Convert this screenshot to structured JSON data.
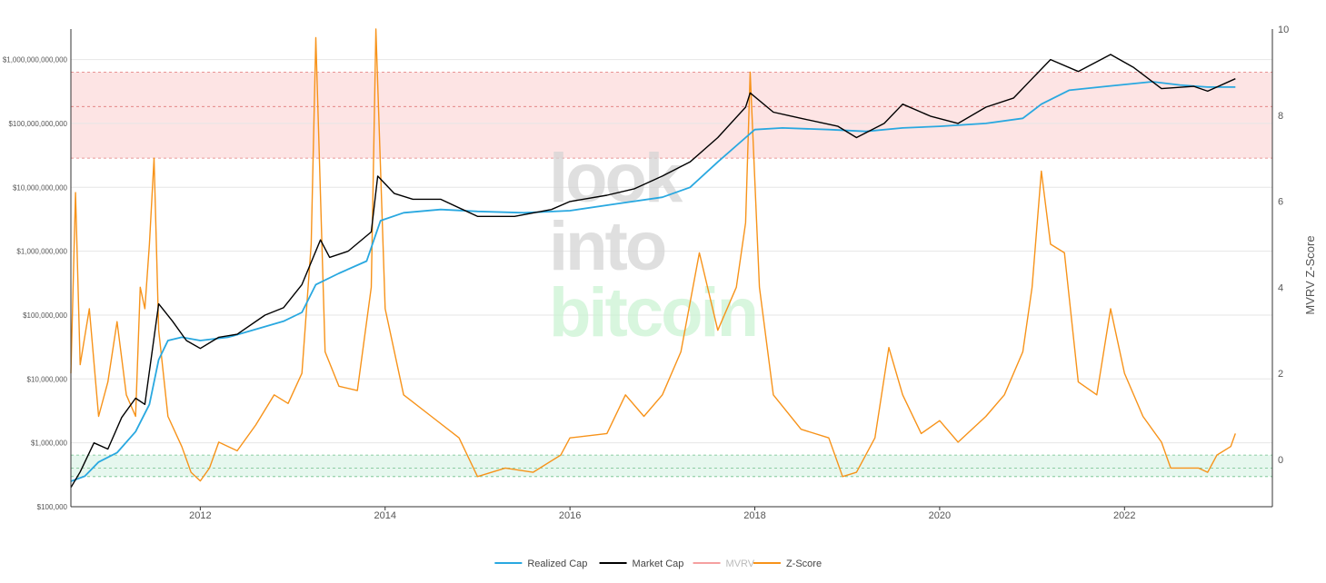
{
  "chart_data": {
    "type": "line",
    "title": "",
    "xlabel": "",
    "ylabel": "",
    "y2label": "MVRV Z-Score",
    "xlim": [
      2010.6,
      2023.6
    ],
    "ylim": [
      100000,
      3000000000000
    ],
    "yscale": "log",
    "y2lim": [
      -1.1,
      10
    ],
    "grid": true,
    "legend_position": "bottom-center",
    "x_ticks": [
      {
        "x": 2012,
        "label": "2012"
      },
      {
        "x": 2014,
        "label": "2014"
      },
      {
        "x": 2016,
        "label": "2016"
      },
      {
        "x": 2018,
        "label": "2018"
      },
      {
        "x": 2020,
        "label": "2020"
      },
      {
        "x": 2022,
        "label": "2022"
      }
    ],
    "y_ticks": [
      {
        "y": 100000,
        "label": "$100,000"
      },
      {
        "y": 1000000,
        "label": "$1,000,000"
      },
      {
        "y": 10000000,
        "label": "$10,000,000"
      },
      {
        "y": 100000000,
        "label": "$100,000,000"
      },
      {
        "y": 1000000000,
        "label": "$1,000,000,000"
      },
      {
        "y": 10000000000,
        "label": "$10,000,000,000"
      },
      {
        "y": 100000000000,
        "label": "$100,000,000,000"
      },
      {
        "y": 1000000000000,
        "label": "$1,000,000,000,000"
      }
    ],
    "y2_ticks": [
      {
        "y": 0,
        "label": "0"
      },
      {
        "y": 2,
        "label": "2"
      },
      {
        "y": 4,
        "label": "4"
      },
      {
        "y": 6,
        "label": "6"
      },
      {
        "y": 8,
        "label": "8"
      },
      {
        "y": 10,
        "label": "10"
      }
    ],
    "bands": [
      {
        "zone": "overvalued",
        "z_from": 7,
        "z_mid": 8.2,
        "z_to": 9,
        "color": "#fde4e4",
        "line_color": "#e07a7a"
      },
      {
        "zone": "undervalued",
        "z_from": -0.4,
        "z_mid": -0.2,
        "z_to": 0.1,
        "color": "#e6f7ee",
        "line_color": "#6fbf8a"
      }
    ],
    "series": [
      {
        "name": "Realized Cap",
        "axis": "left",
        "color": "#29a8e0",
        "points": [
          [
            2010.6,
            250000
          ],
          [
            2010.75,
            300000
          ],
          [
            2010.9,
            500000
          ],
          [
            2011.1,
            700000
          ],
          [
            2011.3,
            1500000
          ],
          [
            2011.45,
            4000000
          ],
          [
            2011.55,
            20000000
          ],
          [
            2011.65,
            40000000
          ],
          [
            2011.8,
            45000000
          ],
          [
            2012.0,
            40000000
          ],
          [
            2012.3,
            45000000
          ],
          [
            2012.6,
            60000000
          ],
          [
            2012.9,
            80000000
          ],
          [
            2013.1,
            110000000
          ],
          [
            2013.25,
            300000000
          ],
          [
            2013.5,
            450000000
          ],
          [
            2013.8,
            700000000
          ],
          [
            2013.95,
            3000000000
          ],
          [
            2014.2,
            4000000000
          ],
          [
            2014.6,
            4500000000
          ],
          [
            2015.0,
            4200000000
          ],
          [
            2015.5,
            4000000000
          ],
          [
            2016.0,
            4300000000
          ],
          [
            2016.5,
            5500000000
          ],
          [
            2017.0,
            7000000000
          ],
          [
            2017.3,
            10000000000
          ],
          [
            2017.6,
            25000000000
          ],
          [
            2017.9,
            60000000000
          ],
          [
            2018.0,
            80000000000
          ],
          [
            2018.3,
            85000000000
          ],
          [
            2018.8,
            80000000000
          ],
          [
            2019.2,
            75000000000
          ],
          [
            2019.6,
            85000000000
          ],
          [
            2020.0,
            90000000000
          ],
          [
            2020.5,
            100000000000
          ],
          [
            2020.9,
            120000000000
          ],
          [
            2021.1,
            200000000000
          ],
          [
            2021.4,
            330000000000
          ],
          [
            2021.8,
            380000000000
          ],
          [
            2022.3,
            450000000000
          ],
          [
            2022.6,
            400000000000
          ],
          [
            2022.9,
            370000000000
          ],
          [
            2023.2,
            370000000000
          ]
        ]
      },
      {
        "name": "Market Cap",
        "axis": "left",
        "color": "#000000",
        "points": [
          [
            2010.6,
            200000
          ],
          [
            2010.7,
            350000
          ],
          [
            2010.85,
            1000000
          ],
          [
            2011.0,
            800000
          ],
          [
            2011.15,
            2500000
          ],
          [
            2011.3,
            5000000
          ],
          [
            2011.4,
            4000000
          ],
          [
            2011.55,
            150000000
          ],
          [
            2011.7,
            80000000
          ],
          [
            2011.85,
            40000000
          ],
          [
            2012.0,
            30000000
          ],
          [
            2012.2,
            45000000
          ],
          [
            2012.4,
            50000000
          ],
          [
            2012.7,
            100000000
          ],
          [
            2012.9,
            130000000
          ],
          [
            2013.1,
            300000000
          ],
          [
            2013.3,
            1500000000
          ],
          [
            2013.4,
            800000000
          ],
          [
            2013.6,
            1000000000
          ],
          [
            2013.85,
            2000000000
          ],
          [
            2013.92,
            15000000000
          ],
          [
            2014.1,
            8000000000
          ],
          [
            2014.3,
            6500000000
          ],
          [
            2014.6,
            6500000000
          ],
          [
            2015.0,
            3500000000
          ],
          [
            2015.4,
            3500000000
          ],
          [
            2015.8,
            4500000000
          ],
          [
            2016.0,
            6000000000
          ],
          [
            2016.4,
            7500000000
          ],
          [
            2016.7,
            9500000000
          ],
          [
            2017.0,
            15000000000
          ],
          [
            2017.3,
            25000000000
          ],
          [
            2017.6,
            60000000000
          ],
          [
            2017.9,
            180000000000
          ],
          [
            2017.95,
            300000000000
          ],
          [
            2018.2,
            150000000000
          ],
          [
            2018.5,
            120000000000
          ],
          [
            2018.9,
            90000000000
          ],
          [
            2019.1,
            60000000000
          ],
          [
            2019.4,
            100000000000
          ],
          [
            2019.6,
            200000000000
          ],
          [
            2019.9,
            130000000000
          ],
          [
            2020.2,
            100000000000
          ],
          [
            2020.5,
            180000000000
          ],
          [
            2020.8,
            250000000000
          ],
          [
            2021.0,
            500000000000
          ],
          [
            2021.2,
            1000000000000
          ],
          [
            2021.5,
            650000000000
          ],
          [
            2021.85,
            1200000000000
          ],
          [
            2022.1,
            750000000000
          ],
          [
            2022.4,
            350000000000
          ],
          [
            2022.75,
            380000000000
          ],
          [
            2022.9,
            320000000000
          ],
          [
            2023.2,
            500000000000
          ]
        ]
      },
      {
        "name": "MVRV",
        "axis": "none",
        "color": "#f5a0a0",
        "points": []
      },
      {
        "name": "Z-Score",
        "axis": "right",
        "color": "#f7931a",
        "points": [
          [
            2010.6,
            2.0
          ],
          [
            2010.65,
            6.2
          ],
          [
            2010.7,
            2.2
          ],
          [
            2010.8,
            3.5
          ],
          [
            2010.9,
            1.0
          ],
          [
            2011.0,
            1.8
          ],
          [
            2011.1,
            3.2
          ],
          [
            2011.2,
            1.5
          ],
          [
            2011.3,
            1.0
          ],
          [
            2011.35,
            4.0
          ],
          [
            2011.4,
            3.5
          ],
          [
            2011.45,
            5.0
          ],
          [
            2011.5,
            7.0
          ],
          [
            2011.55,
            3.0
          ],
          [
            2011.65,
            1.0
          ],
          [
            2011.8,
            0.3
          ],
          [
            2011.9,
            -0.3
          ],
          [
            2012.0,
            -0.5
          ],
          [
            2012.1,
            -0.2
          ],
          [
            2012.2,
            0.4
          ],
          [
            2012.4,
            0.2
          ],
          [
            2012.6,
            0.8
          ],
          [
            2012.8,
            1.5
          ],
          [
            2012.95,
            1.3
          ],
          [
            2013.1,
            2.0
          ],
          [
            2013.2,
            5.0
          ],
          [
            2013.25,
            9.8
          ],
          [
            2013.35,
            2.5
          ],
          [
            2013.5,
            1.7
          ],
          [
            2013.7,
            1.6
          ],
          [
            2013.85,
            4.0
          ],
          [
            2013.9,
            10.0
          ],
          [
            2014.0,
            3.5
          ],
          [
            2014.2,
            1.5
          ],
          [
            2014.5,
            1.0
          ],
          [
            2014.8,
            0.5
          ],
          [
            2015.0,
            -0.4
          ],
          [
            2015.3,
            -0.2
          ],
          [
            2015.6,
            -0.3
          ],
          [
            2015.9,
            0.1
          ],
          [
            2016.0,
            0.5
          ],
          [
            2016.4,
            0.6
          ],
          [
            2016.6,
            1.5
          ],
          [
            2016.8,
            1.0
          ],
          [
            2017.0,
            1.5
          ],
          [
            2017.2,
            2.5
          ],
          [
            2017.4,
            4.8
          ],
          [
            2017.6,
            3.0
          ],
          [
            2017.8,
            4.0
          ],
          [
            2017.9,
            5.5
          ],
          [
            2017.95,
            9.0
          ],
          [
            2018.05,
            4.0
          ],
          [
            2018.2,
            1.5
          ],
          [
            2018.5,
            0.7
          ],
          [
            2018.8,
            0.5
          ],
          [
            2018.95,
            -0.4
          ],
          [
            2019.1,
            -0.3
          ],
          [
            2019.3,
            0.5
          ],
          [
            2019.45,
            2.6
          ],
          [
            2019.6,
            1.5
          ],
          [
            2019.8,
            0.6
          ],
          [
            2020.0,
            0.9
          ],
          [
            2020.2,
            0.4
          ],
          [
            2020.5,
            1.0
          ],
          [
            2020.7,
            1.5
          ],
          [
            2020.9,
            2.5
          ],
          [
            2021.0,
            4.0
          ],
          [
            2021.1,
            6.7
          ],
          [
            2021.2,
            5.0
          ],
          [
            2021.35,
            4.8
          ],
          [
            2021.5,
            1.8
          ],
          [
            2021.7,
            1.5
          ],
          [
            2021.85,
            3.5
          ],
          [
            2022.0,
            2.0
          ],
          [
            2022.2,
            1.0
          ],
          [
            2022.4,
            0.4
          ],
          [
            2022.5,
            -0.2
          ],
          [
            2022.8,
            -0.2
          ],
          [
            2022.9,
            -0.3
          ],
          [
            2023.0,
            0.1
          ],
          [
            2023.15,
            0.3
          ],
          [
            2023.2,
            0.6
          ]
        ]
      }
    ]
  },
  "watermark": {
    "line1": "look",
    "line2": "into",
    "line3": "bitcoin"
  }
}
